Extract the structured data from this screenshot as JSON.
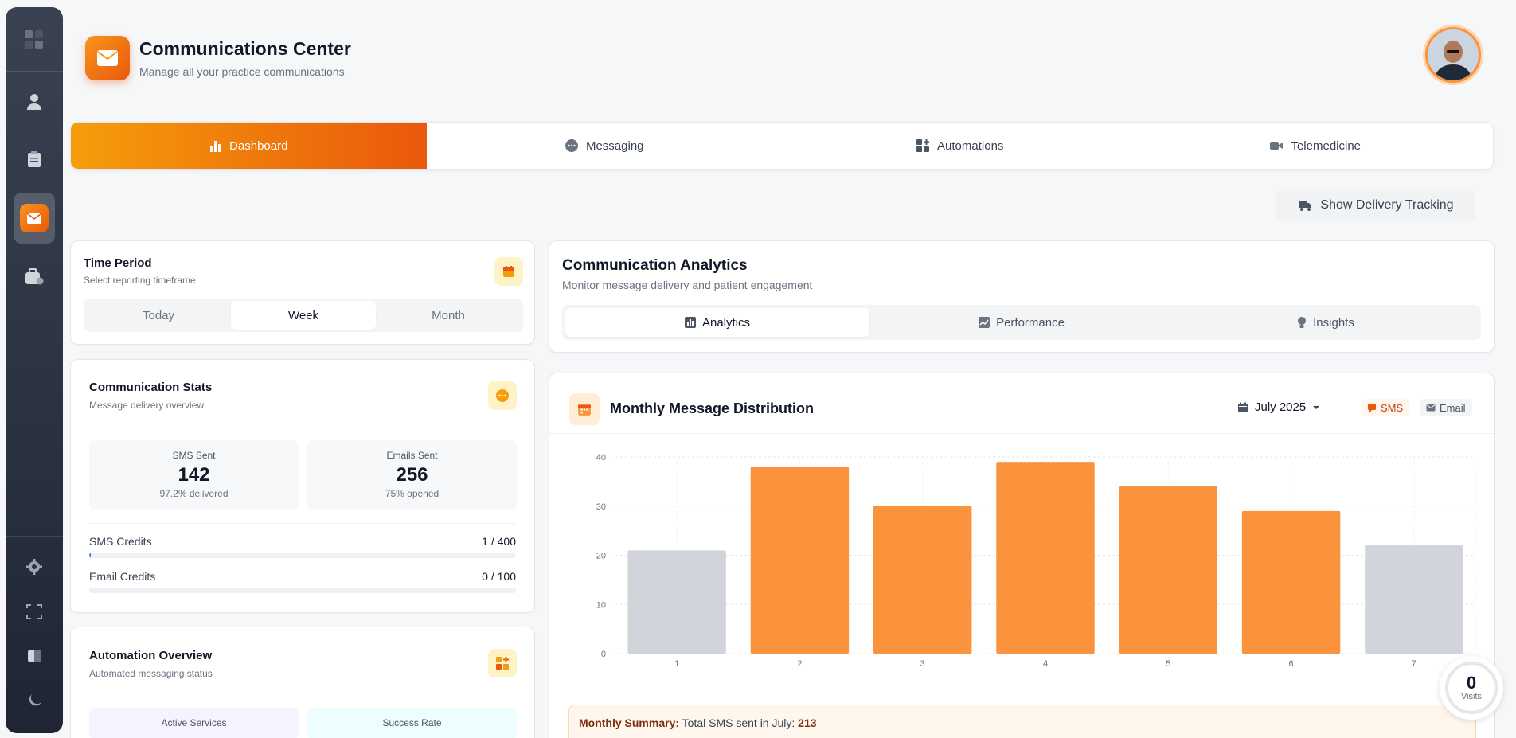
{
  "header": {
    "title": "Communications Center",
    "subtitle": "Manage all your practice communications"
  },
  "main_tabs": [
    {
      "label": "Dashboard",
      "icon": "bar-chart-icon",
      "active": true
    },
    {
      "label": "Messaging",
      "icon": "chat-bubble-icon",
      "active": false
    },
    {
      "label": "Automations",
      "icon": "grid-plus-icon",
      "active": false
    },
    {
      "label": "Telemedicine",
      "icon": "video-camera-icon",
      "active": false
    }
  ],
  "delivery_button": {
    "label": "Show Delivery Tracking"
  },
  "time_period": {
    "title": "Time Period",
    "subtitle": "Select reporting timeframe",
    "options": [
      "Today",
      "Week",
      "Month"
    ],
    "selected": "Week"
  },
  "stats": {
    "title": "Communication Stats",
    "subtitle": "Message delivery overview",
    "sms": {
      "label": "SMS Sent",
      "value": "142",
      "note": "97.2% delivered"
    },
    "emails": {
      "label": "Emails Sent",
      "value": "256",
      "note": "75% opened"
    },
    "sms_credits": {
      "label": "SMS Credits",
      "value": "1 / 400",
      "fraction": 0.0025
    },
    "email_credits": {
      "label": "Email Credits",
      "value": "0 / 100",
      "fraction": 0
    }
  },
  "automation": {
    "title": "Automation Overview",
    "subtitle": "Automated messaging status",
    "active_services": {
      "label": "Active Services"
    },
    "success_rate": {
      "label": "Success Rate"
    }
  },
  "analytics": {
    "title": "Communication Analytics",
    "subtitle": "Monitor message delivery and patient engagement",
    "tabs": [
      {
        "label": "Analytics",
        "icon": "bar-chart-icon",
        "active": true
      },
      {
        "label": "Performance",
        "icon": "trend-icon",
        "active": false
      },
      {
        "label": "Insights",
        "icon": "lightbulb-icon",
        "active": false
      }
    ]
  },
  "distribution": {
    "title": "Monthly Message Distribution",
    "month": "July 2025",
    "legend": [
      {
        "label": "SMS",
        "color": "#fb923c"
      },
      {
        "label": "Email",
        "color": "#d1d5db"
      }
    ],
    "summary_label": "Monthly Summary:",
    "summary_text": "Total SMS sent in July:",
    "summary_value": "213"
  },
  "chart_data": {
    "type": "bar",
    "categories": [
      "1",
      "2",
      "3",
      "4",
      "5",
      "6",
      "7"
    ],
    "values": [
      21,
      38,
      30,
      39,
      34,
      29,
      22
    ],
    "colors": [
      "#d1d5db",
      "#fb923c",
      "#fb923c",
      "#fb923c",
      "#fb923c",
      "#fb923c",
      "#d1d5db"
    ],
    "y_ticks": [
      "0",
      "10",
      "20",
      "30",
      "40"
    ],
    "ylim": [
      0,
      40
    ],
    "grid": true
  },
  "visits": {
    "value": "0",
    "label": "Visits"
  },
  "colors": {
    "accent": "#ea580c",
    "accent_light": "#f59e0b",
    "sidebar": "#2b3240"
  }
}
